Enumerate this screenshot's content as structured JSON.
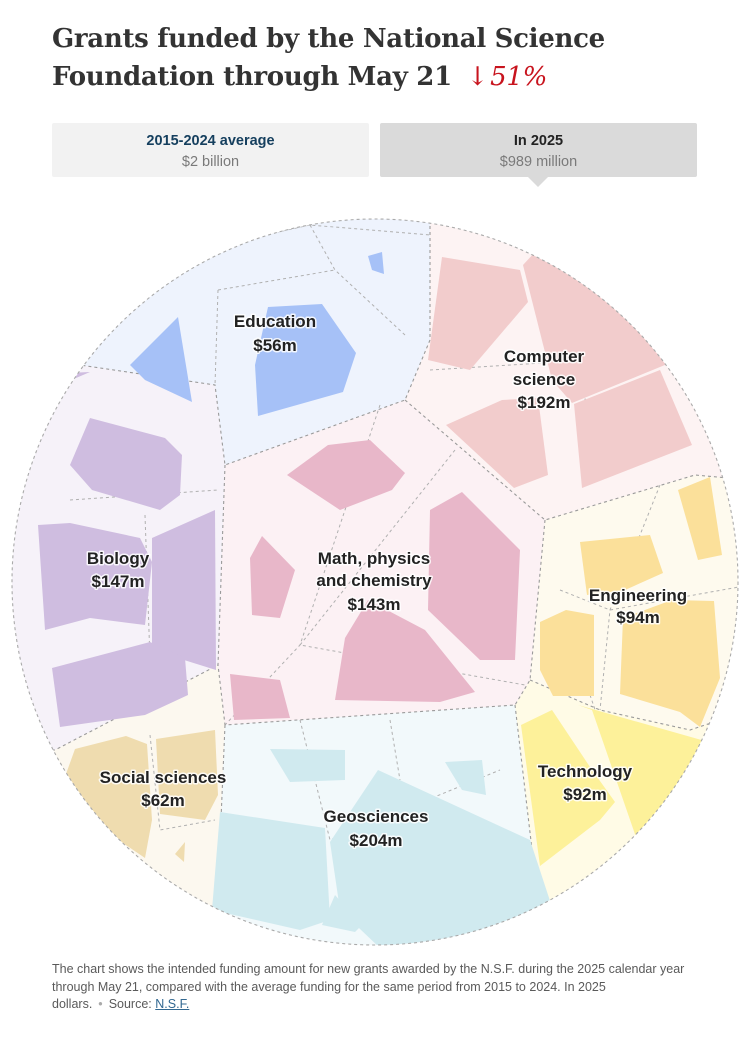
{
  "title": {
    "text": "Grants funded by the National Science Foundation through May 21",
    "arrow": "↓",
    "change": "51%"
  },
  "toggles": [
    {
      "label": "2015-2024 average",
      "value": "$2 billion",
      "selected": false
    },
    {
      "label": "In 2025",
      "value": "$989 million",
      "selected": true
    }
  ],
  "footnote": {
    "text": "The chart shows the intended funding amount for new grants awarded by the N.S.F. during the 2025 calendar year through May 21, compared with the average funding for the same period from 2015 to 2024. In 2025 dollars.",
    "source_label": "Source:",
    "source_link": "N.S.F."
  },
  "chart_data": {
    "type": "voronoi-treemap",
    "unit": "million dollars",
    "categories": [
      {
        "name": "Education",
        "value_label": "$56m",
        "value": 56,
        "fill": "#a6c1f7",
        "bg": "#eef3fd"
      },
      {
        "name": "Computer science",
        "value_label": "$192m",
        "value": 192,
        "fill": "#f2cccc",
        "bg": "#fdf3f3"
      },
      {
        "name": "Biology",
        "value_label": "$147m",
        "value": 147,
        "fill": "#cfbde0",
        "bg": "#f6f2f9"
      },
      {
        "name": "Math, physics and chemistry",
        "value_label": "$143m",
        "value": 143,
        "fill": "#e8b7c9",
        "bg": "#fcf1f4"
      },
      {
        "name": "Engineering",
        "value_label": "$94m",
        "value": 94,
        "fill": "#fbe09a",
        "bg": "#fefaee"
      },
      {
        "name": "Social sciences",
        "value_label": "$62m",
        "value": 62,
        "fill": "#efdcaf",
        "bg": "#fcf8ef"
      },
      {
        "name": "Technology",
        "value_label": "$92m",
        "value": 92,
        "fill": "#fdf19a",
        "bg": "#fffbe6"
      },
      {
        "name": "Geosciences",
        "value_label": "$204m",
        "value": 204,
        "fill": "#d0eaef",
        "bg": "#f2f9fb"
      }
    ],
    "comparison": {
      "average_2015_2024": "$2 billion",
      "total_2025": "$989 million",
      "change": "51%"
    }
  }
}
